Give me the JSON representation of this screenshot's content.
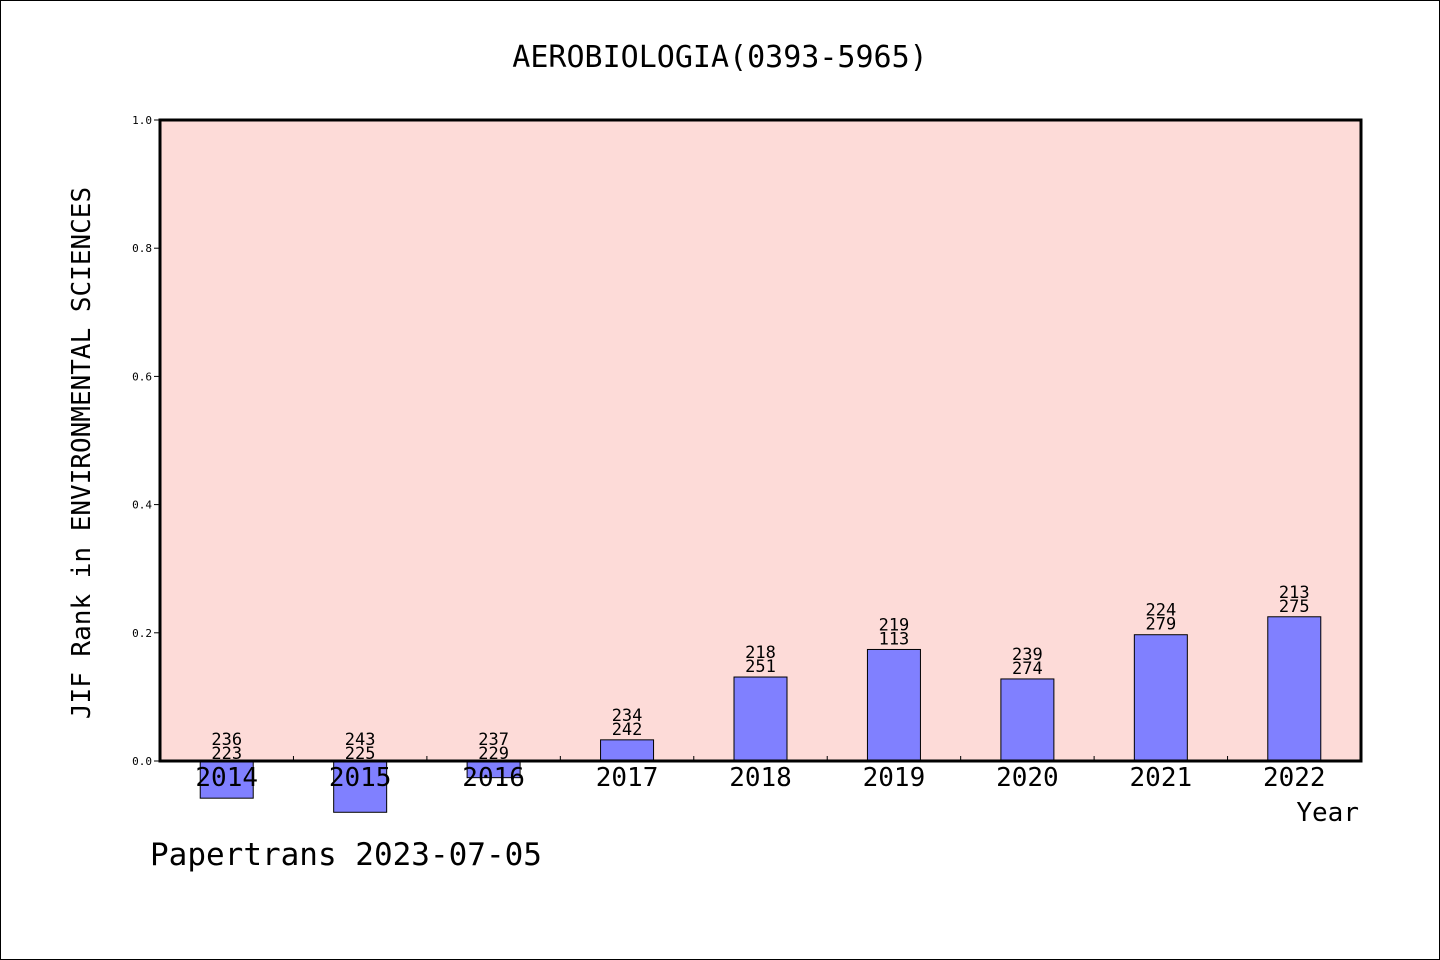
{
  "chart_data": {
    "type": "bar",
    "title": "AEROBIOLOGIA(0393-5965)",
    "xlabel": "Year",
    "ylabel": "JIF Rank in ENVIRONMENTAL SCIENCES",
    "ylim": [
      0.0,
      1.0
    ],
    "yticks": [
      "0.0",
      "0.2",
      "0.4",
      "0.6",
      "0.8",
      "1.0"
    ],
    "categories": [
      "2014",
      "2015",
      "2016",
      "2017",
      "2018",
      "2019",
      "2020",
      "2021",
      "2022"
    ],
    "values": [
      -0.058,
      -0.08,
      -0.026,
      0.033,
      0.131,
      0.174,
      0.128,
      0.197,
      0.225
    ],
    "labels": [
      [
        "236",
        "223"
      ],
      [
        "243",
        "225"
      ],
      [
        "237",
        "229"
      ],
      [
        "234",
        "242"
      ],
      [
        "218",
        "251"
      ],
      [
        "219",
        "113"
      ],
      [
        "239",
        "274"
      ],
      [
        "224",
        "279"
      ],
      [
        "213",
        "275"
      ]
    ],
    "bar_color": "#8080ff",
    "plot_background": "#fddbd8",
    "grid": false,
    "legend": "none"
  },
  "footer": {
    "text": "Papertrans 2023-07-05"
  }
}
